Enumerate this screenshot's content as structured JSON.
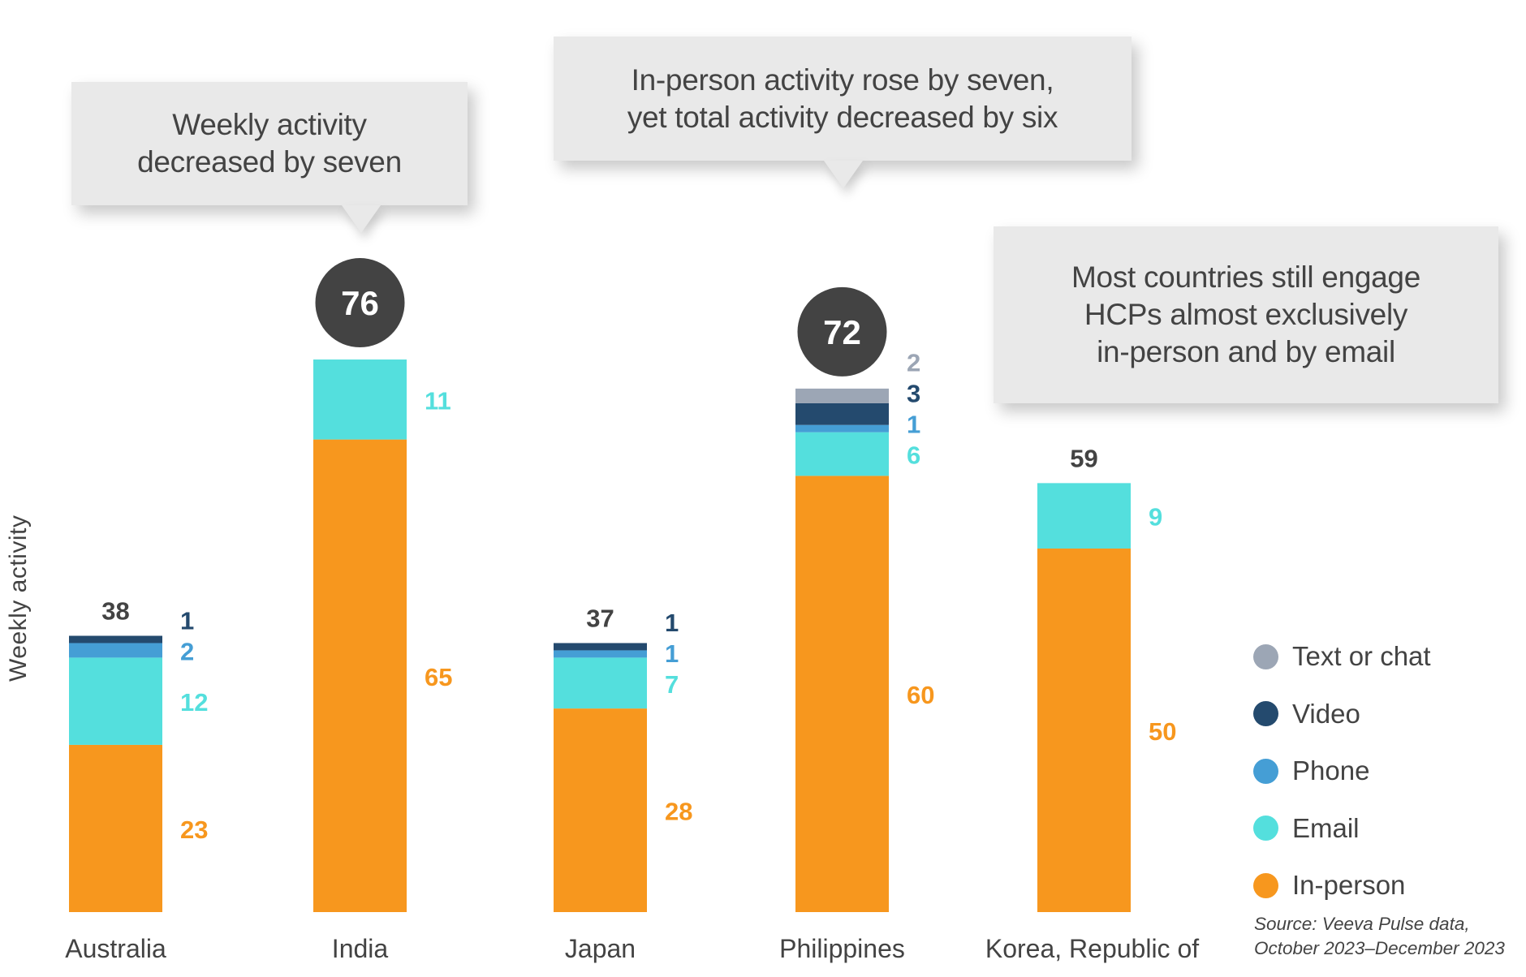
{
  "chart_data": {
    "type": "bar",
    "stacked": true,
    "title": "",
    "xlabel": "",
    "ylabel": "Weekly activity",
    "ylim": [
      0,
      80
    ],
    "grid": false,
    "legend_position": "right",
    "categories": [
      "Australia",
      "India",
      "Japan",
      "Philippines",
      "Korea, Republic of"
    ],
    "totals": [
      38,
      76,
      37,
      72,
      59
    ],
    "highlighted_totals": [
      "India",
      "Philippines"
    ],
    "series": [
      {
        "name": "In-person",
        "color": "#f7971e",
        "values": [
          23,
          65,
          28,
          60,
          50
        ]
      },
      {
        "name": "Email",
        "color": "#54dfdd",
        "values": [
          12,
          11,
          7,
          6,
          9
        ]
      },
      {
        "name": "Phone",
        "color": "#459ed5",
        "values": [
          2,
          0,
          1,
          1,
          0
        ]
      },
      {
        "name": "Video",
        "color": "#244a6e",
        "values": [
          1,
          0,
          1,
          3,
          0
        ]
      },
      {
        "name": "Text or chat",
        "color": "#9ca6b5",
        "values": [
          0,
          0,
          0,
          2,
          0
        ]
      }
    ],
    "legend_order": [
      "Text or chat",
      "Video",
      "Phone",
      "Email",
      "In-person"
    ],
    "annotations": [
      {
        "text": "Weekly activity\ndecreased by seven",
        "target": "India"
      },
      {
        "text": "In-person activity rose by seven,\nyet total activity decreased by six",
        "target": "Philippines"
      },
      {
        "text": "Most countries still engage\nHCPs almost exclusively\nin-person and by email",
        "target": null
      }
    ],
    "source": "Source: Veeva Pulse data,\nOctober 2023–December 2023"
  },
  "colors": {
    "total_label": "#434343",
    "highlight_circle": "#434343",
    "highlight_text": "#ffffff",
    "callout_bg": "#e9e9e9"
  }
}
